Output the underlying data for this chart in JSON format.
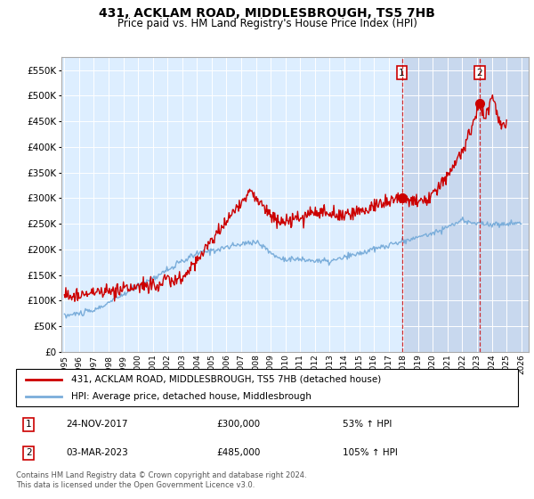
{
  "title1": "431, ACKLAM ROAD, MIDDLESBROUGH, TS5 7HB",
  "title2": "Price paid vs. HM Land Registry's House Price Index (HPI)",
  "ylabel_values": [
    "£0",
    "£50K",
    "£100K",
    "£150K",
    "£200K",
    "£250K",
    "£300K",
    "£350K",
    "£400K",
    "£450K",
    "£500K",
    "£550K"
  ],
  "ylim": [
    0,
    575000
  ],
  "yticks": [
    0,
    50000,
    100000,
    150000,
    200000,
    250000,
    300000,
    350000,
    400000,
    450000,
    500000,
    550000
  ],
  "xmin": 1994.8,
  "xmax": 2026.5,
  "red_color": "#cc0000",
  "blue_color": "#7aadda",
  "sale1_x": 2017.9,
  "sale1_y": 300000,
  "sale1_label": "1",
  "sale2_x": 2023.17,
  "sale2_y": 485000,
  "sale2_label": "2",
  "legend_line1": "431, ACKLAM ROAD, MIDDLESBROUGH, TS5 7HB (detached house)",
  "legend_line2": "HPI: Average price, detached house, Middlesbrough",
  "annotation1_date": "24-NOV-2017",
  "annotation1_price": "£300,000",
  "annotation1_hpi": "53% ↑ HPI",
  "annotation2_date": "03-MAR-2023",
  "annotation2_price": "£485,000",
  "annotation2_hpi": "105% ↑ HPI",
  "footer": "Contains HM Land Registry data © Crown copyright and database right 2024.\nThis data is licensed under the Open Government Licence v3.0.",
  "background_plot": "#ddeeff",
  "background_hatch": "#c8d8ee",
  "grid_color": "#ffffff"
}
